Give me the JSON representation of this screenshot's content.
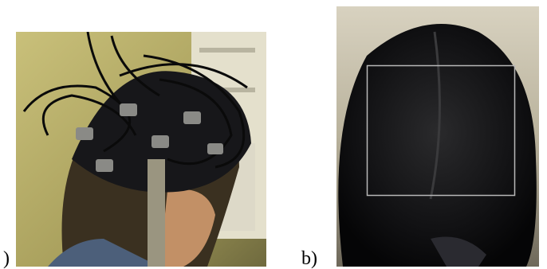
{
  "panels": [
    {
      "label": ")"
    },
    {
      "label": "b)"
    }
  ]
}
